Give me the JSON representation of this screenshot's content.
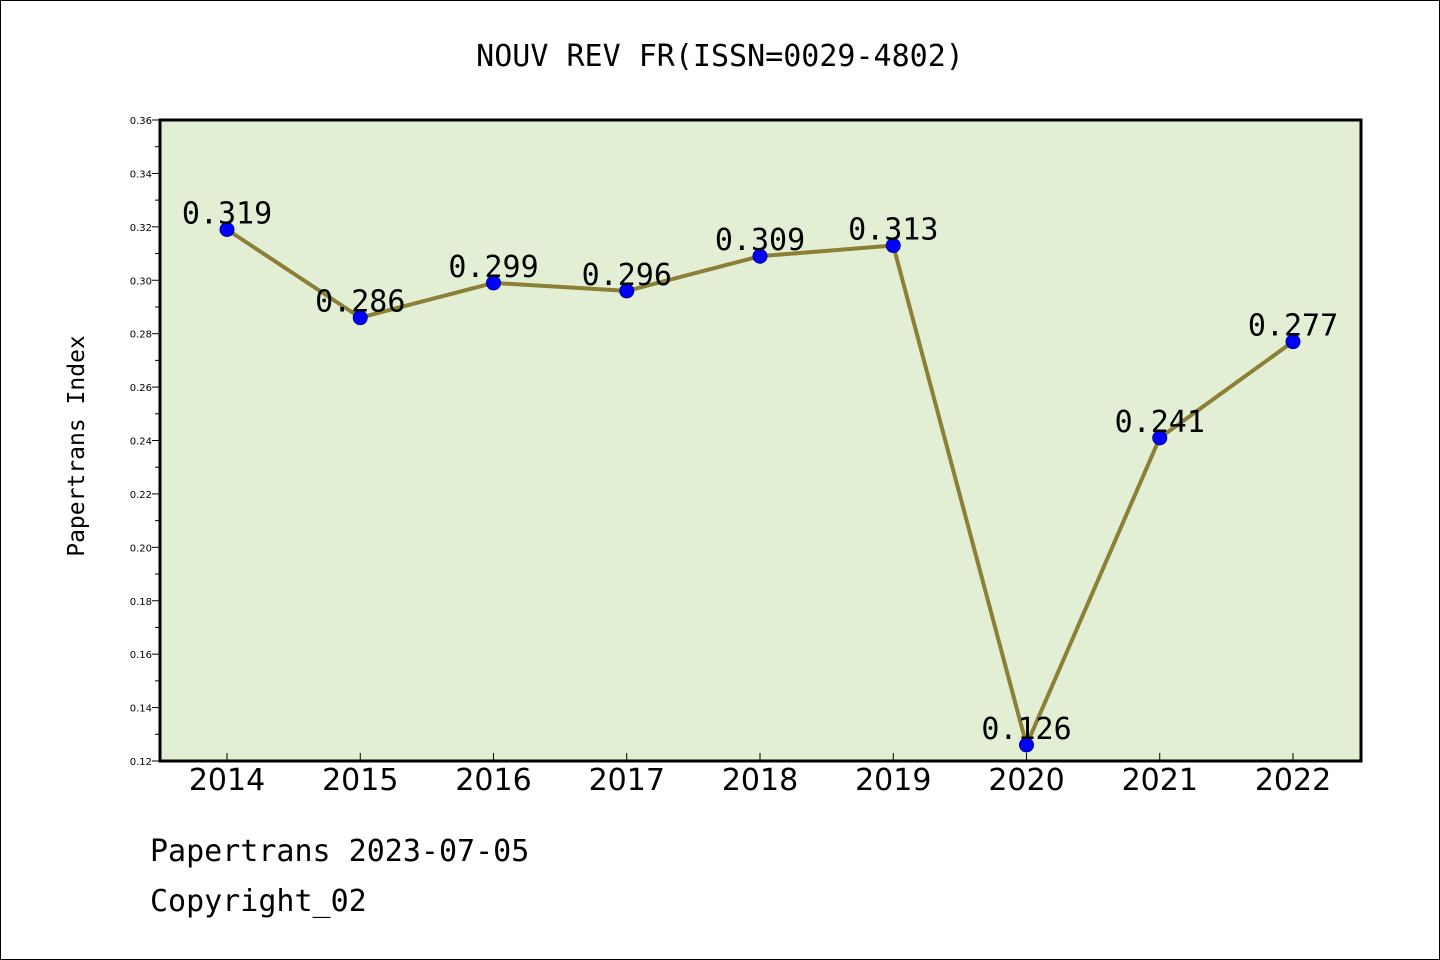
{
  "chart_data": {
    "type": "line",
    "title": "NOUV REV FR(ISSN=0029-4802)",
    "xlabel": "",
    "ylabel": "Papertrans Index",
    "categories": [
      "2014",
      "2015",
      "2016",
      "2017",
      "2018",
      "2019",
      "2020",
      "2021",
      "2022"
    ],
    "values": [
      0.319,
      0.286,
      0.299,
      0.296,
      0.309,
      0.313,
      0.126,
      0.241,
      0.277
    ],
    "data_labels": [
      "0.319",
      "0.286",
      "0.299",
      "0.296",
      "0.309",
      "0.313",
      "0.126",
      "0.241",
      "0.277"
    ],
    "ylim": [
      0.12,
      0.36
    ],
    "yticks": [
      "0.12",
      "0.14",
      "0.16",
      "0.18",
      "0.20",
      "0.22",
      "0.24",
      "0.26",
      "0.28",
      "0.30",
      "0.32",
      "0.34",
      "0.36"
    ],
    "grid": false,
    "legend": "none",
    "colors": {
      "plot_background": "#e2efd5",
      "line": "#8b8035",
      "marker_fill": "#0000ff",
      "marker_edge": "#00008b",
      "axes": "#000000"
    }
  },
  "footer": {
    "line1": "Papertrans 2023-07-05",
    "line2": "Copyright_02"
  }
}
